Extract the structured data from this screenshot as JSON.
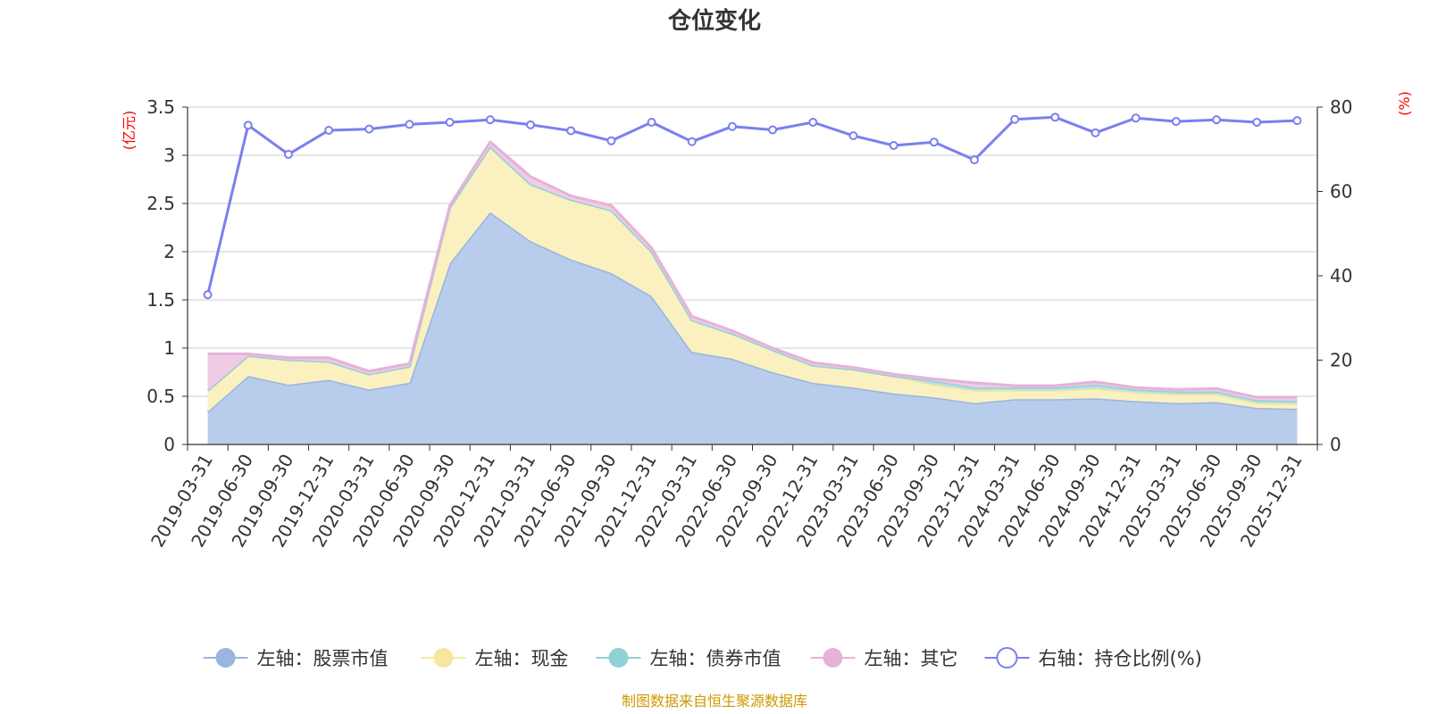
{
  "chart_data": {
    "type": "area",
    "title": "仓位变化",
    "source_note": "制图数据来自恒生聚源数据库",
    "left_axis": {
      "unit": "(亿元)",
      "min": 0,
      "max": 3.5,
      "ticks": [
        0,
        0.5,
        1,
        1.5,
        2,
        2.5,
        3,
        3.5
      ],
      "tick_labels": [
        "0",
        "0.5",
        "1",
        "1.5",
        "2",
        "2.5",
        "3",
        "3.5"
      ]
    },
    "right_axis": {
      "unit": "(%)",
      "min": 0,
      "max": 80,
      "ticks": [
        0,
        20,
        40,
        60,
        80
      ],
      "tick_labels": [
        "0",
        "20",
        "40",
        "60",
        "80"
      ]
    },
    "categories": [
      "2019-03-31",
      "2019-06-30",
      "2019-09-30",
      "2019-12-31",
      "2020-03-31",
      "2020-06-30",
      "2020-09-30",
      "2020-12-31",
      "2021-03-31",
      "2021-06-30",
      "2021-09-30",
      "2021-12-31",
      "2022-03-31",
      "2022-06-30",
      "2022-09-30",
      "2022-12-31",
      "2023-03-31",
      "2023-06-30",
      "2023-09-30",
      "2023-12-31",
      "2024-03-31",
      "2024-06-30",
      "2024-09-30",
      "2024-12-31",
      "2025-03-31",
      "2025-06-30",
      "2025-09-30",
      "2025-12-31"
    ],
    "series": [
      {
        "name": "左轴：股票市值",
        "axis": "left",
        "stack": true,
        "color": "#9ab5e0",
        "fill": "#b8cceb",
        "values": [
          0.34,
          0.71,
          0.62,
          0.67,
          0.57,
          0.64,
          1.88,
          2.41,
          2.11,
          1.92,
          1.78,
          1.54,
          0.96,
          0.89,
          0.75,
          0.64,
          0.59,
          0.53,
          0.49,
          0.43,
          0.47,
          0.47,
          0.48,
          0.45,
          0.43,
          0.44,
          0.38,
          0.37
        ]
      },
      {
        "name": "左轴：现金",
        "axis": "left",
        "stack": true,
        "color": "#f7e6a0",
        "fill": "#fbf0c0",
        "values": [
          0.22,
          0.21,
          0.26,
          0.19,
          0.16,
          0.17,
          0.58,
          0.68,
          0.59,
          0.62,
          0.65,
          0.46,
          0.33,
          0.26,
          0.23,
          0.18,
          0.19,
          0.18,
          0.13,
          0.13,
          0.09,
          0.09,
          0.1,
          0.09,
          0.09,
          0.08,
          0.05,
          0.05
        ]
      },
      {
        "name": "左轴：债券市值",
        "axis": "left",
        "stack": true,
        "color": "#90d1d6",
        "fill": "#b6e2e5",
        "values": [
          0,
          0,
          0,
          0,
          0,
          0,
          0,
          0,
          0,
          0,
          0,
          0,
          0,
          0,
          0,
          0,
          0,
          0,
          0.04,
          0.03,
          0.03,
          0.03,
          0.04,
          0.03,
          0.03,
          0.03,
          0.03,
          0.03
        ]
      },
      {
        "name": "左轴：其它",
        "axis": "left",
        "stack": true,
        "color": "#e6b2d8",
        "fill": "#efcbe6",
        "values": [
          0.38,
          0.02,
          0.02,
          0.04,
          0.03,
          0.03,
          0.02,
          0.05,
          0.08,
          0.04,
          0.05,
          0.04,
          0.04,
          0.03,
          0.02,
          0.03,
          0.02,
          0.02,
          0.02,
          0.05,
          0.02,
          0.02,
          0.03,
          0.02,
          0.02,
          0.03,
          0.03,
          0.04
        ]
      },
      {
        "name": "右轴：持仓比例(%)",
        "axis": "right",
        "stack": false,
        "color": "#7b7ff0",
        "values": [
          35.5,
          75.7,
          68.8,
          74.5,
          74.8,
          75.9,
          76.4,
          77.0,
          75.8,
          74.4,
          72.0,
          76.4,
          71.8,
          75.4,
          74.6,
          76.4,
          73.2,
          70.9,
          71.7,
          67.5,
          77.1,
          77.6,
          73.9,
          77.4,
          76.6,
          77.0,
          76.4,
          76.8
        ]
      }
    ]
  }
}
